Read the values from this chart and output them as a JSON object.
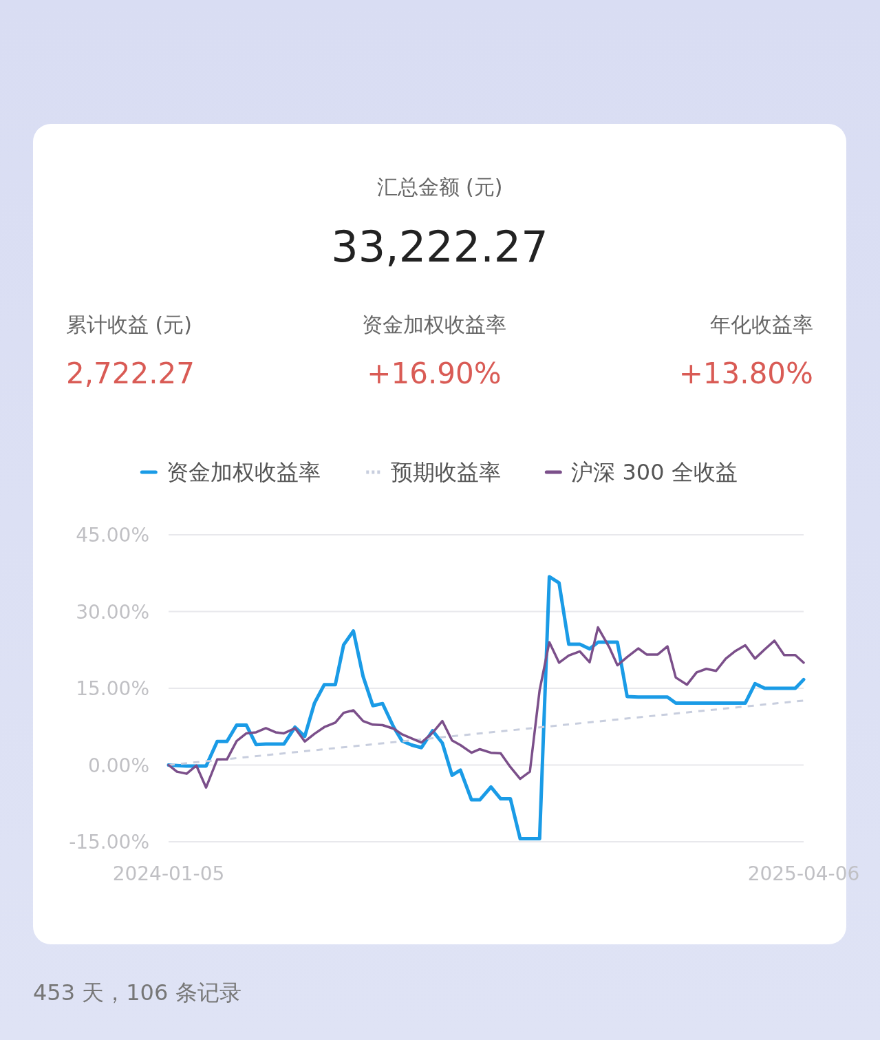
{
  "chart_data": [
    {
      "type": "other",
      "title": "汇总金额 (元)",
      "annotations": [
        "33,222.27",
        "累计收益 (元)",
        "2,722.27",
        "资金加权收益率",
        "+16.90%",
        "年化收益率",
        "+13.80%"
      ]
    },
    {
      "type": "line",
      "legend": "top",
      "grid": "y",
      "marker": "none",
      "line_style": "solid",
      "xlim": [
        "2024-01-05",
        "2025-04-06"
      ],
      "xticks": [
        {
          "value": "2024-01-05",
          "label": "2024-01-05"
        },
        {
          "value": "2025-04-06",
          "label": "2025-04-06"
        }
      ],
      "ylim": [
        -15,
        45
      ],
      "yticks": [
        {
          "value": -15,
          "label": "-15.00%"
        },
        {
          "value": 0,
          "label": "0.00%"
        },
        {
          "value": 15,
          "label": "15.00%"
        },
        {
          "value": 30,
          "label": "30.00%"
        },
        {
          "value": 45,
          "label": "45.00%"
        }
      ],
      "x": [
        "2024-01-05",
        "2024-01-11",
        "2024-01-18",
        "2024-01-25",
        "2024-02-01",
        "2024-02-09",
        "2024-02-16",
        "2024-02-23",
        "2024-03-01",
        "2024-03-08",
        "2024-03-15",
        "2024-03-22",
        "2024-03-28",
        "2024-04-05",
        "2024-04-12",
        "2024-04-19",
        "2024-04-26",
        "2024-05-04",
        "2024-05-10",
        "2024-05-17",
        "2024-05-24",
        "2024-05-31",
        "2024-06-07",
        "2024-06-15",
        "2024-06-21",
        "2024-06-28",
        "2024-07-05",
        "2024-07-13",
        "2024-07-20",
        "2024-07-27",
        "2024-08-02",
        "2024-08-10",
        "2024-08-16",
        "2024-08-24",
        "2024-08-31",
        "2024-09-07",
        "2024-09-14",
        "2024-09-21",
        "2024-09-28",
        "2024-10-05",
        "2024-10-12",
        "2024-10-19",
        "2024-10-27",
        "2024-11-03",
        "2024-11-09",
        "2024-11-17",
        "2024-11-23",
        "2024-11-30",
        "2024-12-08",
        "2024-12-14",
        "2024-12-22",
        "2024-12-29",
        "2025-01-04",
        "2025-01-12",
        "2025-01-19",
        "2025-01-26",
        "2025-02-02",
        "2025-02-09",
        "2025-02-16",
        "2025-02-23",
        "2025-03-02",
        "2025-03-09",
        "2025-03-16",
        "2025-03-23",
        "2025-03-31",
        "2025-04-06"
      ],
      "series": [
        {
          "name": "资金加权收益率",
          "color": "#1a9be6",
          "values": [
            0,
            -0.1,
            -0.2,
            -0.2,
            -0.2,
            4.6,
            4.6,
            7.8,
            7.8,
            4.0,
            4.1,
            4.1,
            4.1,
            7.4,
            5.6,
            12.1,
            15.7,
            15.7,
            23.5,
            26.2,
            17.3,
            11.6,
            12.0,
            7.4,
            4.7,
            3.9,
            3.4,
            6.7,
            4.3,
            -2.0,
            -1.0,
            -6.8,
            -6.8,
            -4.3,
            -6.6,
            -6.6,
            -14.4,
            -14.4,
            -14.4,
            36.8,
            35.6,
            23.6,
            23.6,
            22.7,
            24.0,
            24.0,
            24.0,
            13.4,
            13.3,
            13.3,
            13.3,
            13.3,
            12.1,
            12.1,
            12.1,
            12.1,
            12.1,
            12.1,
            12.1,
            12.1,
            15.9,
            15.0,
            15.0,
            15.0,
            15.0,
            16.7
          ]
        },
        {
          "name": "预期收益率",
          "color": "#c8cede",
          "line_style": "dashed",
          "x": [
            "2024-01-05",
            "2025-04-06"
          ],
          "values": [
            0,
            12.6
          ]
        },
        {
          "name": "沪深 300 全收益",
          "color": "#7b4f8a",
          "values": [
            0,
            -1.3,
            -1.7,
            -0.1,
            -4.4,
            1.1,
            1.1,
            4.7,
            6.2,
            6.4,
            7.2,
            6.4,
            6.2,
            7.2,
            4.6,
            6.1,
            7.4,
            8.3,
            10.2,
            10.7,
            8.6,
            7.9,
            7.8,
            7.1,
            6.0,
            5.2,
            4.4,
            6.3,
            8.6,
            4.8,
            3.9,
            2.4,
            3.1,
            2.4,
            2.3,
            -0.4,
            -2.7,
            -1.3,
            14.6,
            24.0,
            20.0,
            21.4,
            22.2,
            20.1,
            26.9,
            23.1,
            19.5,
            21.1,
            22.8,
            21.6,
            21.6,
            23.2,
            17.1,
            15.7,
            18.1,
            18.8,
            18.4,
            20.8,
            22.3,
            23.4,
            20.8,
            22.6,
            24.3,
            21.5,
            21.5,
            20.0
          ]
        }
      ],
      "annotations": [
        "453 天，106 条记录"
      ]
    }
  ]
}
